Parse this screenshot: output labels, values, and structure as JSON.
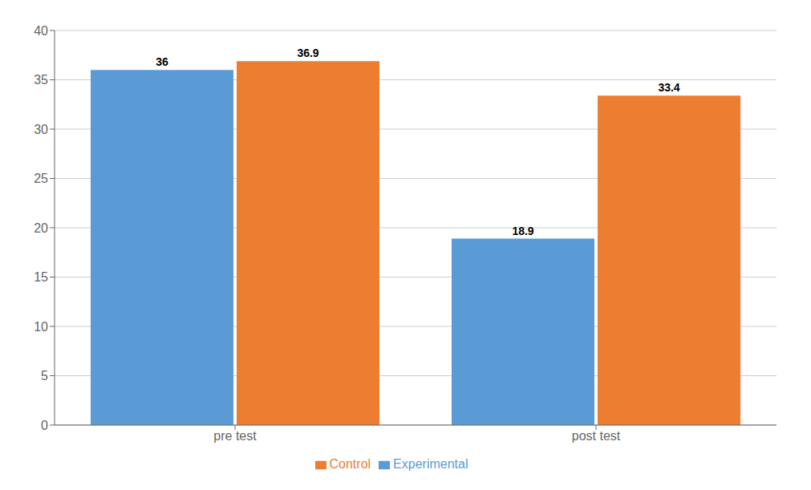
{
  "chart_data": {
    "type": "bar",
    "categories": [
      "pre test",
      "post test"
    ],
    "series": [
      {
        "name": "Experimental",
        "color": "#5B9BD5",
        "values": [
          36,
          18.9
        ]
      },
      {
        "name": "Control",
        "color": "#ED7D31",
        "values": [
          36.9,
          33.4
        ]
      }
    ],
    "ylim": [
      0,
      40
    ],
    "yticks": [
      0,
      5,
      10,
      15,
      20,
      25,
      30,
      35,
      40
    ],
    "grid": true,
    "legend": "bottom",
    "data_labels": true
  }
}
